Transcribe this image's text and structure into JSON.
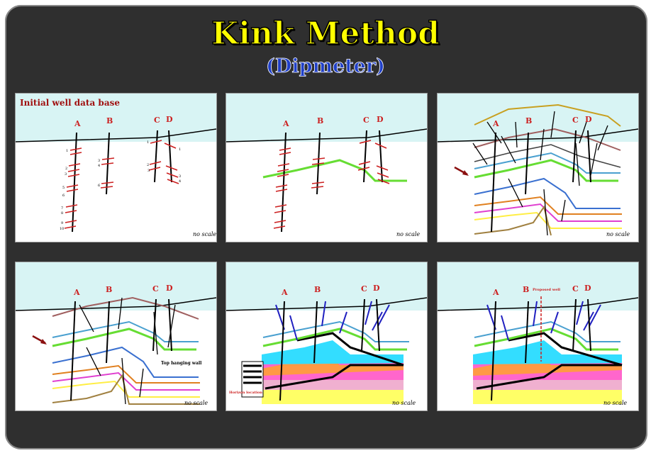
{
  "title": "Kink Method",
  "subtitle": "(Dipmeter)",
  "colors": {
    "background": "#2f2f2f",
    "title": "#ffff00",
    "subtitle": "#2040c8",
    "sky": "#d8f4f4",
    "well_label": "#cc2020"
  },
  "panels": [
    {
      "heading": "Initial well data base",
      "no_scale": "no scale",
      "wells": [
        "A",
        "B",
        "C",
        "D"
      ],
      "depths_a": [
        "1",
        "2",
        "3",
        "4",
        "5",
        "6",
        "7",
        "8",
        "9",
        "10"
      ]
    },
    {
      "no_scale": "no scale",
      "wells": [
        "A",
        "B",
        "C",
        "D"
      ]
    },
    {
      "no_scale": "no scale",
      "wells": [
        "A",
        "B",
        "C",
        "D"
      ]
    },
    {
      "no_scale": "no scale",
      "wells": [
        "A",
        "B",
        "C",
        "D"
      ],
      "annotation": "Top hanging wall"
    },
    {
      "no_scale": "no scale",
      "wells": [
        "A",
        "B",
        "C",
        "D"
      ],
      "legend_text": "Horizon location"
    },
    {
      "no_scale": "no scale",
      "wells": [
        "A",
        "B",
        "C",
        "D"
      ],
      "proposed": "Proposed well"
    }
  ]
}
